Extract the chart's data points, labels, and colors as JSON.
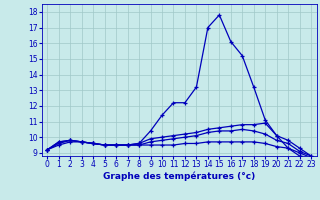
{
  "title": "Graphe des températures (°c)",
  "background_color": "#c8eaea",
  "line_color": "#0000bb",
  "grid_color": "#a0c8c8",
  "xlim": [
    -0.5,
    23.5
  ],
  "ylim": [
    8.8,
    18.5
  ],
  "xticks": [
    0,
    1,
    2,
    3,
    4,
    5,
    6,
    7,
    8,
    9,
    10,
    11,
    12,
    13,
    14,
    15,
    16,
    17,
    18,
    19,
    20,
    21,
    22,
    23
  ],
  "yticks": [
    9,
    10,
    11,
    12,
    13,
    14,
    15,
    16,
    17,
    18
  ],
  "series": [
    {
      "x": [
        0,
        1,
        2,
        3,
        4,
        5,
        6,
        7,
        8,
        9,
        10,
        11,
        12,
        13,
        14,
        15,
        16,
        17,
        18,
        19,
        20,
        21,
        22,
        23
      ],
      "y": [
        9.2,
        9.7,
        9.8,
        9.7,
        9.6,
        9.5,
        9.5,
        9.5,
        9.6,
        10.4,
        11.4,
        12.2,
        12.2,
        13.2,
        17.0,
        17.8,
        16.1,
        15.2,
        13.2,
        11.1,
        10.1,
        9.3,
        8.8,
        8.7
      ]
    },
    {
      "x": [
        0,
        1,
        2,
        3,
        4,
        5,
        6,
        7,
        8,
        9,
        10,
        11,
        12,
        13,
        14,
        15,
        16,
        17,
        18,
        19,
        20,
        21,
        22,
        23
      ],
      "y": [
        9.2,
        9.7,
        9.8,
        9.7,
        9.6,
        9.5,
        9.5,
        9.5,
        9.6,
        9.9,
        10.0,
        10.1,
        10.2,
        10.3,
        10.5,
        10.6,
        10.7,
        10.8,
        10.8,
        10.9,
        10.1,
        9.8,
        9.3,
        8.8
      ]
    },
    {
      "x": [
        0,
        1,
        2,
        3,
        4,
        5,
        6,
        7,
        8,
        9,
        10,
        11,
        12,
        13,
        14,
        15,
        16,
        17,
        18,
        19,
        20,
        21,
        22,
        23
      ],
      "y": [
        9.2,
        9.6,
        9.8,
        9.7,
        9.6,
        9.5,
        9.5,
        9.5,
        9.5,
        9.7,
        9.8,
        9.9,
        10.0,
        10.1,
        10.3,
        10.4,
        10.4,
        10.5,
        10.4,
        10.2,
        9.8,
        9.6,
        9.1,
        8.8
      ]
    },
    {
      "x": [
        0,
        1,
        2,
        3,
        4,
        5,
        6,
        7,
        8,
        9,
        10,
        11,
        12,
        13,
        14,
        15,
        16,
        17,
        18,
        19,
        20,
        21,
        22,
        23
      ],
      "y": [
        9.2,
        9.5,
        9.7,
        9.7,
        9.6,
        9.5,
        9.5,
        9.5,
        9.5,
        9.5,
        9.5,
        9.5,
        9.6,
        9.6,
        9.7,
        9.7,
        9.7,
        9.7,
        9.7,
        9.6,
        9.4,
        9.3,
        9.0,
        8.7
      ]
    }
  ],
  "xlabel_fontsize": 6.5,
  "tick_fontsize": 5.5,
  "linewidth": 0.9,
  "markersize": 3.0
}
